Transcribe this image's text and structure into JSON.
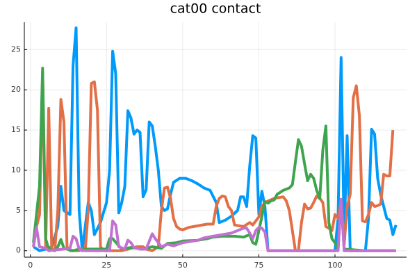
{
  "chart_data": {
    "type": "line",
    "title": "cat00 contact",
    "xlim": [
      -2,
      123.5
    ],
    "ylim": [
      -0.8,
      28.4
    ],
    "xticks": [
      0,
      25,
      50,
      75,
      100
    ],
    "yticks": [
      0,
      5,
      10,
      15,
      20,
      25
    ],
    "grid": true,
    "series": [
      {
        "color": "#009afa",
        "x": [
          1,
          3,
          5,
          7,
          9,
          10,
          11,
          13,
          14,
          15,
          16,
          17,
          19,
          20,
          21,
          23,
          25,
          26,
          27,
          28,
          29,
          30,
          31,
          32,
          33,
          34,
          35,
          36,
          37,
          38,
          39,
          40,
          41,
          42,
          43,
          44,
          45,
          46,
          47,
          49,
          51,
          53,
          55,
          57,
          59,
          61,
          62,
          64,
          66,
          68,
          69,
          70,
          71,
          72,
          73,
          74,
          75,
          76,
          77,
          78,
          80,
          100,
          101,
          102,
          103,
          104,
          105,
          110,
          111,
          112,
          113,
          114,
          115,
          116,
          117,
          118,
          119,
          120
        ],
        "values": [
          0.5,
          0,
          0.2,
          0.5,
          3,
          8,
          5,
          4.5,
          23,
          27.7,
          5,
          0,
          6,
          5,
          2,
          3.5,
          6,
          10,
          24.8,
          22,
          4.7,
          6,
          8,
          17.4,
          16.5,
          14.5,
          15,
          14.7,
          6.7,
          7.6,
          16,
          15.5,
          13,
          10,
          5.5,
          5,
          5.2,
          7,
          8.5,
          9,
          9,
          8.7,
          8.3,
          7.8,
          7.5,
          6,
          3.5,
          3.8,
          4.3,
          5,
          6.7,
          6.7,
          5.5,
          10.5,
          14.3,
          14,
          4.5,
          7.4,
          5.5,
          0,
          0,
          0,
          4,
          24,
          2,
          14.3,
          0,
          0,
          4,
          15.1,
          14.5,
          9,
          7,
          5.5,
          4,
          3.8,
          2,
          3.2
        ]
      },
      {
        "color": "#e26f46",
        "x": [
          1,
          2,
          3,
          4,
          5,
          6,
          7,
          8,
          9,
          10,
          11,
          12,
          13,
          16,
          17,
          18,
          19,
          20,
          21,
          22,
          23,
          24,
          30,
          35,
          37,
          38,
          40,
          42,
          43,
          44,
          45,
          46,
          47,
          48,
          49,
          50,
          52,
          55,
          58,
          60,
          61,
          62,
          63,
          64,
          65,
          66,
          67,
          70,
          72,
          73,
          75,
          76,
          77,
          80,
          83,
          84,
          85,
          86,
          87,
          88,
          89,
          90,
          91,
          92,
          93,
          94,
          95,
          96,
          97,
          98,
          99,
          100,
          101,
          102,
          103,
          104,
          105,
          106,
          107,
          108,
          109,
          110,
          111,
          112,
          113,
          114,
          115,
          116,
          117,
          118,
          119
        ],
        "values": [
          0.5,
          3,
          4.5,
          22,
          0.5,
          17.7,
          0.2,
          0,
          5,
          18.8,
          16,
          0.5,
          0,
          0,
          0.3,
          0,
          5,
          20.8,
          21,
          17.5,
          0.5,
          0,
          0,
          0.5,
          0.5,
          0.2,
          0,
          0.5,
          5,
          7.8,
          7.9,
          6.5,
          4,
          3,
          2.7,
          2.6,
          2.9,
          3.1,
          3.3,
          3.3,
          5.5,
          6.5,
          6.8,
          6.7,
          5.5,
          5,
          3.2,
          3,
          3.5,
          3.2,
          4.2,
          5.5,
          6,
          6.5,
          6.7,
          6.2,
          5,
          2.5,
          0,
          0,
          3.5,
          5.8,
          5.2,
          5.3,
          6,
          6.8,
          6.5,
          6,
          3,
          2.8,
          2.5,
          4.5,
          4,
          6.2,
          0.8,
          5.5,
          7,
          19,
          20.5,
          16.8,
          3.7,
          3.6,
          4.5,
          6,
          5.5,
          5.6,
          5.8,
          9.5,
          9.3,
          9.3,
          15
        ]
      },
      {
        "color": "#3ea44e",
        "x": [
          1,
          3,
          4,
          5,
          6,
          8,
          9,
          10,
          11,
          14,
          16,
          25,
          26,
          27,
          30,
          33,
          35,
          37,
          40,
          43,
          45,
          48,
          50,
          55,
          58,
          60,
          63,
          67,
          70,
          72,
          73,
          74,
          76,
          77,
          78,
          79,
          80,
          81,
          83,
          85,
          86,
          87,
          88,
          89,
          90,
          91,
          92,
          93,
          94,
          95,
          96,
          97,
          98,
          99,
          100,
          101,
          102,
          103,
          110,
          120
        ],
        "values": [
          1,
          8,
          22.7,
          1.5,
          0.2,
          0,
          0.5,
          1.4,
          0.3,
          0,
          0.2,
          0.2,
          1.5,
          1.5,
          0.2,
          0.4,
          0.3,
          0.2,
          0.5,
          0.3,
          0.9,
          1,
          1.2,
          1.3,
          1.5,
          1.7,
          1.8,
          1.8,
          1.7,
          2,
          1,
          0.8,
          4.2,
          6.1,
          5.9,
          6.2,
          6.3,
          7,
          7.5,
          7.8,
          8.2,
          11,
          13.8,
          13,
          10.8,
          8.7,
          9.5,
          9,
          7.5,
          6.5,
          12.5,
          15.5,
          3.5,
          1.5,
          1,
          0.1,
          6.2,
          0.2,
          0,
          0
        ]
      },
      {
        "color": "#c270d2",
        "x": [
          1,
          2,
          3,
          5,
          6,
          13,
          14,
          15,
          16,
          18,
          26,
          27,
          28,
          29,
          31,
          32,
          33,
          34,
          36,
          38,
          40,
          41,
          43,
          45,
          47,
          50,
          55,
          57,
          60,
          63,
          66,
          68,
          70,
          71,
          72,
          73,
          74,
          75,
          76,
          77,
          78,
          90,
          101,
          102,
          103,
          120
        ],
        "values": [
          0.5,
          2.9,
          0.5,
          0.3,
          0,
          0.3,
          1.8,
          1.5,
          0.2,
          0,
          0,
          3.7,
          3.2,
          0.5,
          0.2,
          1.3,
          1,
          0.4,
          0.2,
          0.2,
          2.1,
          1.5,
          0.5,
          0.8,
          0.6,
          1,
          1.3,
          1.6,
          1.8,
          2,
          2.2,
          2.5,
          2.8,
          2.8,
          2.2,
          1.5,
          2.5,
          2.9,
          2.8,
          2.3,
          0,
          0,
          0,
          6.4,
          0,
          0
        ]
      }
    ]
  }
}
